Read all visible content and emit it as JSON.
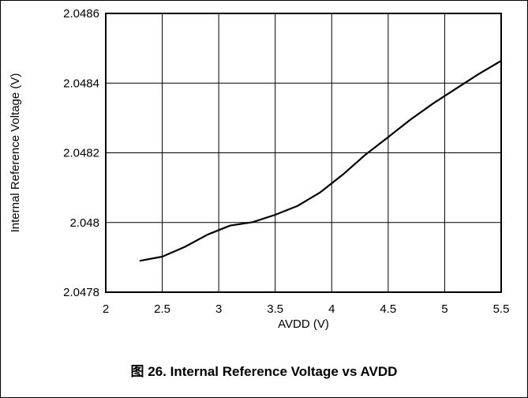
{
  "chart_data": {
    "type": "line",
    "title": "",
    "xlabel": "AVDD (V)",
    "ylabel": "Internal Reference Voltage (V)",
    "xlim": [
      2,
      5.5
    ],
    "ylim": [
      2.0478,
      2.0486
    ],
    "x_ticks": [
      2,
      2.5,
      3,
      3.5,
      4,
      4.5,
      5,
      5.5
    ],
    "x_tick_labels": [
      "2",
      "2.5",
      "3",
      "3.5",
      "4",
      "4.5",
      "5",
      "5.5"
    ],
    "y_ticks": [
      2.0478,
      2.048,
      2.0482,
      2.0484,
      2.0486
    ],
    "y_tick_labels": [
      "2.0478",
      "2.048",
      "2.0482",
      "2.0484",
      "2.0486"
    ],
    "grid": true,
    "legend": "none",
    "line_color": "#000000",
    "series": [
      {
        "x": [
          2.3,
          2.5,
          2.7,
          2.9,
          3.1,
          3.3,
          3.5,
          3.7,
          3.9,
          4.1,
          4.3,
          4.5,
          4.7,
          4.9,
          5.1,
          5.3,
          5.5
        ],
        "y": [
          2.04789,
          2.047902,
          2.04793,
          2.047965,
          2.047991,
          2.048001,
          2.048022,
          2.048048,
          2.048087,
          2.048138,
          2.048195,
          2.048245,
          2.048296,
          2.048342,
          2.048384,
          2.048426,
          2.048464
        ]
      }
    ]
  },
  "caption": "图 26. Internal Reference Voltage vs AVDD"
}
